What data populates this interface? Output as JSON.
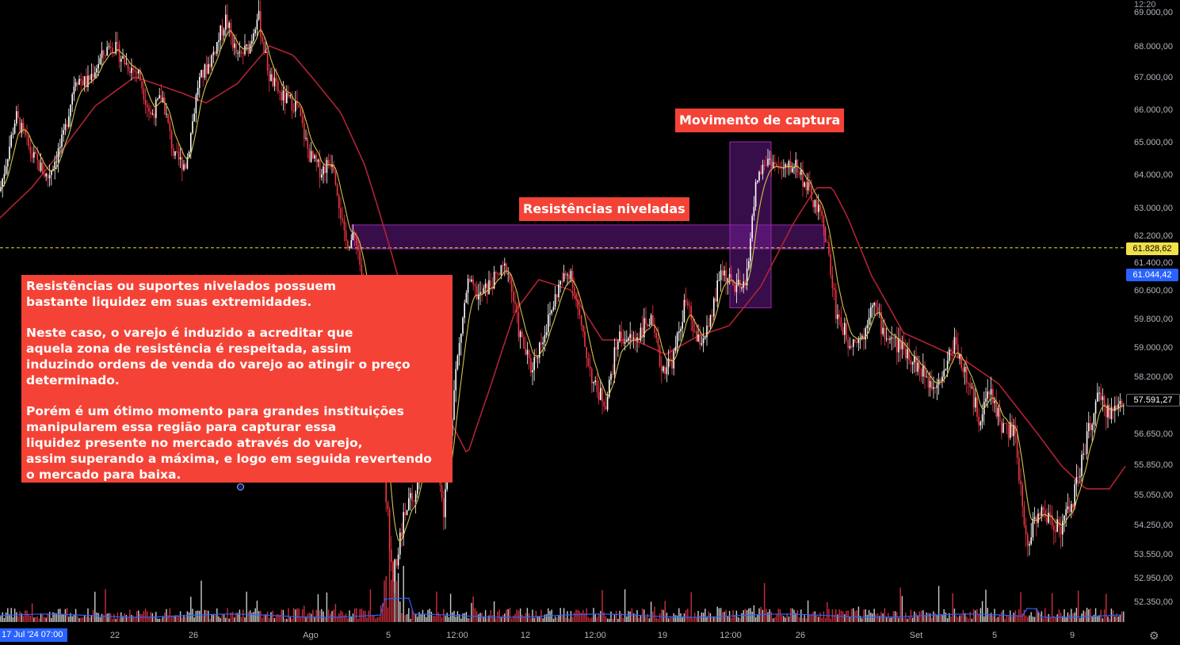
{
  "header": {
    "clock": "12:20"
  },
  "chart_data": {
    "type": "candlestick",
    "y_axis": {
      "ticks": [
        "69.000,00",
        "68.000,00",
        "67.000,00",
        "66.000,00",
        "65.000,00",
        "64.000,00",
        "63.000,00",
        "62.200,00",
        "61.400,00",
        "60.600,00",
        "59.800,00",
        "59.000,00",
        "58.200,00",
        "56.650,00",
        "55.850,00",
        "55.050,00",
        "54.250,00",
        "53.550,00",
        "52.950,00",
        "52.350,00"
      ],
      "tick_values": [
        69000,
        68000,
        67000,
        66000,
        65000,
        64000,
        63000,
        62200,
        61400,
        60600,
        59800,
        59000,
        58200,
        56650,
        55850,
        55050,
        54250,
        53550,
        52950,
        52350
      ]
    },
    "x_axis": {
      "start_label": "17 Jul '24  07:00",
      "ticks": [
        "22",
        "26",
        "Ago",
        "5",
        "12:00",
        "12",
        "12:00",
        "19",
        "12:00",
        "26",
        "Set",
        "5",
        "9"
      ]
    },
    "price_path": [
      [
        0,
        63500
      ],
      [
        20,
        65800
      ],
      [
        40,
        64600
      ],
      [
        60,
        63900
      ],
      [
        80,
        65100
      ],
      [
        95,
        67000
      ],
      [
        110,
        66800
      ],
      [
        125,
        67500
      ],
      [
        140,
        68100
      ],
      [
        160,
        67400
      ],
      [
        175,
        67100
      ],
      [
        190,
        65800
      ],
      [
        205,
        66400
      ],
      [
        220,
        64500
      ],
      [
        235,
        64300
      ],
      [
        250,
        66800
      ],
      [
        265,
        67500
      ],
      [
        285,
        68800
      ],
      [
        300,
        67600
      ],
      [
        315,
        68000
      ],
      [
        325,
        69000
      ],
      [
        340,
        67000
      ],
      [
        355,
        66400
      ],
      [
        375,
        66100
      ],
      [
        390,
        64600
      ],
      [
        405,
        64100
      ],
      [
        420,
        64500
      ],
      [
        435,
        62000
      ],
      [
        450,
        62100
      ],
      [
        465,
        59500
      ],
      [
        480,
        57000
      ],
      [
        495,
        52900
      ],
      [
        510,
        54500
      ],
      [
        525,
        55200
      ],
      [
        545,
        57500
      ],
      [
        560,
        54600
      ],
      [
        575,
        58300
      ],
      [
        590,
        60800
      ],
      [
        605,
        60400
      ],
      [
        620,
        60800
      ],
      [
        640,
        61300
      ],
      [
        655,
        59400
      ],
      [
        670,
        58400
      ],
      [
        690,
        59600
      ],
      [
        705,
        60700
      ],
      [
        720,
        61200
      ],
      [
        735,
        59300
      ],
      [
        750,
        57900
      ],
      [
        765,
        57500
      ],
      [
        780,
        59300
      ],
      [
        800,
        59200
      ],
      [
        820,
        59800
      ],
      [
        835,
        58400
      ],
      [
        850,
        58700
      ],
      [
        865,
        60300
      ],
      [
        880,
        59100
      ],
      [
        895,
        59500
      ],
      [
        910,
        61200
      ],
      [
        925,
        60700
      ],
      [
        940,
        60600
      ],
      [
        955,
        63900
      ],
      [
        970,
        64500
      ],
      [
        985,
        64100
      ],
      [
        1005,
        64300
      ],
      [
        1020,
        63500
      ],
      [
        1040,
        62500
      ],
      [
        1055,
        60000
      ],
      [
        1070,
        59200
      ],
      [
        1090,
        59300
      ],
      [
        1100,
        60400
      ],
      [
        1115,
        59400
      ],
      [
        1130,
        59100
      ],
      [
        1145,
        58900
      ],
      [
        1160,
        58400
      ],
      [
        1175,
        58000
      ],
      [
        1190,
        58300
      ],
      [
        1205,
        59200
      ],
      [
        1220,
        58100
      ],
      [
        1235,
        57100
      ],
      [
        1250,
        57800
      ],
      [
        1265,
        56800
      ],
      [
        1280,
        56700
      ],
      [
        1295,
        53800
      ],
      [
        1310,
        54600
      ],
      [
        1325,
        54400
      ],
      [
        1340,
        54200
      ],
      [
        1355,
        55000
      ],
      [
        1370,
        56400
      ],
      [
        1385,
        57600
      ],
      [
        1400,
        57200
      ],
      [
        1420,
        57591
      ]
    ],
    "sma_series": [
      [
        0,
        62700
      ],
      [
        40,
        63600
      ],
      [
        80,
        64800
      ],
      [
        120,
        66100
      ],
      [
        170,
        67000
      ],
      [
        230,
        66500
      ],
      [
        260,
        66200
      ],
      [
        300,
        66800
      ],
      [
        340,
        68000
      ],
      [
        370,
        67700
      ],
      [
        400,
        66800
      ],
      [
        430,
        65900
      ],
      [
        460,
        64300
      ],
      [
        490,
        62000
      ],
      [
        520,
        59500
      ],
      [
        560,
        57300
      ],
      [
        590,
        56100
      ],
      [
        620,
        58000
      ],
      [
        650,
        60000
      ],
      [
        680,
        60900
      ],
      [
        720,
        60600
      ],
      [
        760,
        59200
      ],
      [
        800,
        59200
      ],
      [
        840,
        58800
      ],
      [
        880,
        59300
      ],
      [
        920,
        59600
      ],
      [
        960,
        60700
      ],
      [
        1000,
        62500
      ],
      [
        1030,
        63600
      ],
      [
        1050,
        63600
      ],
      [
        1070,
        62700
      ],
      [
        1100,
        61000
      ],
      [
        1140,
        59400
      ],
      [
        1180,
        59000
      ],
      [
        1220,
        58600
      ],
      [
        1260,
        58000
      ],
      [
        1300,
        56900
      ],
      [
        1340,
        55800
      ],
      [
        1370,
        55200
      ],
      [
        1400,
        55200
      ],
      [
        1420,
        55800
      ]
    ],
    "last_price": "57.591,27",
    "horizontal_line": {
      "value": 61828.62,
      "label": "61.828,62"
    },
    "blue_price": {
      "value": 61044.42,
      "label": "61.044,42"
    },
    "zones": [
      {
        "name": "resistance-zone",
        "price_top": 62500,
        "price_bottom": 61800,
        "x_start": 444,
        "x_end": 1040
      },
      {
        "name": "capture-zone",
        "price_top": 65000,
        "price_bottom": 60100,
        "x_start": 921,
        "x_end": 973
      }
    ],
    "annotations": {
      "resistance_label": "Resistências niveladas",
      "capture_label": "Movimento de captura"
    }
  },
  "note": {
    "paragraph1": "Resistências ou suportes nivelados possuem\nbastante liquidez em suas extremidades.",
    "paragraph2": "Neste caso, o varejo é induzido a acreditar que\naquela zona de resistência é respeitada, assim\ninduzindo ordens de venda do varejo ao atingir o preço\ndeterminado.",
    "paragraph3": "Porém é um ótimo momento para grandes instituições\nmanipularem essa região para capturar essa\nliquidez presente no mercado através do varejo,\nassim superando a máxima, e logo em seguida revertendo\no mercado para baixa."
  },
  "colors": {
    "up": "#ffffff",
    "down": "#f23645",
    "sma": "#b22234",
    "fast_ma": "#d4c24a",
    "volume_ma": "#2962ff",
    "zone": "#7b1fa2",
    "note_bg": "#f44336"
  }
}
